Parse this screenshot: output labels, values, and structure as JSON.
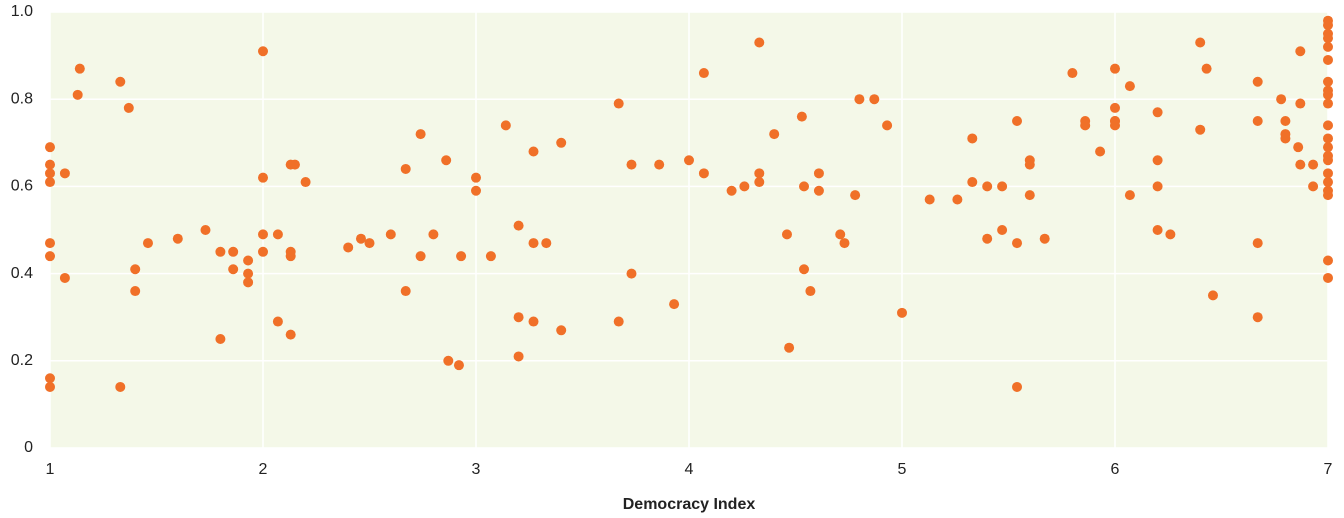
{
  "chart_data": {
    "type": "scatter",
    "xlabel": "Democracy Index",
    "color": "#f07028",
    "background": "#f4f8e8",
    "grid": true,
    "xlim": [
      1,
      7
    ],
    "ylim": [
      0,
      1
    ],
    "xticks": [
      1,
      2,
      3,
      4,
      5,
      6,
      7
    ],
    "yticks": [
      0,
      0.2,
      0.4,
      0.6,
      0.8,
      {
        "value": 1,
        "label": "1.0"
      }
    ],
    "x": [
      1,
      1,
      1,
      1,
      1,
      1,
      1,
      1,
      1.07,
      1.07,
      1.14,
      1.13,
      1.33,
      1.33,
      1.37,
      1.4,
      1.4,
      1.46,
      1.6,
      1.73,
      1.8,
      1.8,
      1.86,
      1.86,
      1.93,
      1.93,
      1.93,
      2,
      2,
      2,
      2,
      2.07,
      2.07,
      2.13,
      2.13,
      2.13,
      2.15,
      2.13,
      2.2,
      2.4,
      2.46,
      2.5,
      2.6,
      2.67,
      2.74,
      2.74,
      2.8,
      2.67,
      2.86,
      2.87,
      2.92,
      2.93,
      3,
      3,
      3.07,
      3.14,
      3.2,
      3.2,
      3.2,
      3.27,
      3.27,
      3.27,
      3.33,
      3.4,
      3.4,
      3.67,
      3.67,
      3.73,
      3.73,
      3.86,
      3.93,
      4,
      4.07,
      4.07,
      4.2,
      4.26,
      4.33,
      4.33,
      4.33,
      4.4,
      4.46,
      4.47,
      4.53,
      4.54,
      4.54,
      4.57,
      4.61,
      4.61,
      4.71,
      4.73,
      4.78,
      4.8,
      4.87,
      4.93,
      5,
      5.13,
      5.26,
      5.33,
      5.33,
      5.4,
      5.4,
      5.47,
      5.47,
      5.54,
      5.54,
      5.54,
      5.6,
      5.6,
      5.6,
      5.67,
      5.8,
      5.86,
      5.86,
      5.93,
      6,
      6,
      6,
      6,
      6,
      6.07,
      6.07,
      6.2,
      6.2,
      6.2,
      6.2,
      6.26,
      6.4,
      6.4,
      6.43,
      6.46,
      6.67,
      6.67,
      6.67,
      6.67,
      6.78,
      6.8,
      6.8,
      6.8,
      6.86,
      6.87,
      6.87,
      6.87,
      6.93,
      6.93,
      7,
      7,
      7,
      7,
      7,
      7,
      7,
      7,
      7,
      7,
      7,
      7,
      7,
      7,
      7,
      7,
      7,
      7,
      7,
      7,
      7
    ],
    "y": [
      0.69,
      0.65,
      0.63,
      0.61,
      0.47,
      0.44,
      0.16,
      0.14,
      0.63,
      0.39,
      0.87,
      0.81,
      0.84,
      0.14,
      0.78,
      0.41,
      0.36,
      0.47,
      0.48,
      0.5,
      0.45,
      0.25,
      0.45,
      0.41,
      0.43,
      0.4,
      0.38,
      0.91,
      0.62,
      0.49,
      0.45,
      0.49,
      0.29,
      0.45,
      0.44,
      0.65,
      0.65,
      0.26,
      0.61,
      0.46,
      0.48,
      0.47,
      0.49,
      0.64,
      0.72,
      0.44,
      0.49,
      0.36,
      0.66,
      0.2,
      0.19,
      0.44,
      0.62,
      0.59,
      0.44,
      0.74,
      0.51,
      0.3,
      0.21,
      0.68,
      0.47,
      0.29,
      0.47,
      0.7,
      0.27,
      0.79,
      0.29,
      0.65,
      0.4,
      0.65,
      0.33,
      0.66,
      0.63,
      0.86,
      0.59,
      0.6,
      0.93,
      0.63,
      0.61,
      0.72,
      0.49,
      0.23,
      0.76,
      0.6,
      0.41,
      0.36,
      0.63,
      0.59,
      0.49,
      0.47,
      0.58,
      0.8,
      0.8,
      0.74,
      0.31,
      0.57,
      0.57,
      0.71,
      0.61,
      0.6,
      0.48,
      0.6,
      0.5,
      0.75,
      0.14,
      0.47,
      0.66,
      0.65,
      0.58,
      0.48,
      0.86,
      0.75,
      0.74,
      0.68,
      0.87,
      0.78,
      0.75,
      0.75,
      0.74,
      0.83,
      0.58,
      0.77,
      0.66,
      0.6,
      0.5,
      0.49,
      0.93,
      0.73,
      0.87,
      0.35,
      0.84,
      0.75,
      0.47,
      0.3,
      0.8,
      0.75,
      0.72,
      0.71,
      0.69,
      0.91,
      0.79,
      0.65,
      0.65,
      0.6,
      0.98,
      0.97,
      0.95,
      0.94,
      0.92,
      0.89,
      0.84,
      0.82,
      0.81,
      0.79,
      0.74,
      0.71,
      0.69,
      0.67,
      0.66,
      0.63,
      0.61,
      0.59,
      0.58,
      0.43,
      0.39
    ]
  }
}
